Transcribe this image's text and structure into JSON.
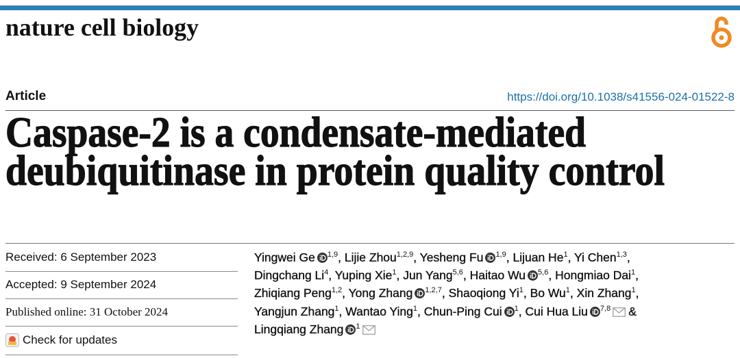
{
  "header": {
    "journal": "nature cell biology",
    "article_type": "Article",
    "doi": "https://doi.org/10.1038/s41556-024-01522-8"
  },
  "title": [
    "Caspase-2 is a condensate-mediated",
    "deubiquitinase in protein quality control"
  ],
  "dates": {
    "received": "Received: 6 September 2023",
    "accepted": "Accepted: 9 September 2024",
    "published": "Published online: 31 October 2024"
  },
  "check_updates": "Check for updates",
  "authors": [
    {
      "name": "Yingwei Ge",
      "orcid": true,
      "affiliations": "1,9",
      "separator": ","
    },
    {
      "name": "Lijie Zhou",
      "affiliations": "1,2,9",
      "separator": ","
    },
    {
      "name": "Yesheng Fu",
      "orcid": true,
      "affiliations": "1,9",
      "separator": ","
    },
    {
      "name": "Lijuan He",
      "affiliations": "1",
      "separator": ","
    },
    {
      "name": "Yi Chen",
      "affiliations": "1,3",
      "separator": ","
    },
    {
      "name": "Dingchang Li",
      "affiliations": "4",
      "separator": ","
    },
    {
      "name": "Yuping Xie",
      "affiliations": "1",
      "separator": ","
    },
    {
      "name": "Jun Yang",
      "affiliations": "5,6",
      "separator": ","
    },
    {
      "name": "Haitao Wu",
      "orcid": true,
      "affiliations": "5,6",
      "separator": ","
    },
    {
      "name": "Hongmiao Dai",
      "affiliations": "1",
      "separator": ","
    },
    {
      "name": "Zhiqiang Peng",
      "affiliations": "1,2",
      "separator": ","
    },
    {
      "name": "Yong Zhang",
      "orcid": true,
      "affiliations": "1,2,7",
      "separator": ","
    },
    {
      "name": "Shaoqiong Yi",
      "affiliations": "1",
      "separator": ","
    },
    {
      "name": "Bo Wu",
      "affiliations": "1",
      "separator": ","
    },
    {
      "name": "Xin Zhang",
      "affiliations": "1",
      "separator": ","
    },
    {
      "name": "Yangjun Zhang",
      "affiliations": "1",
      "separator": ","
    },
    {
      "name": "Wantao Ying",
      "affiliations": "1",
      "separator": ","
    },
    {
      "name": "Chun-Ping Cui",
      "orcid": true,
      "affiliations": "1",
      "separator": ","
    },
    {
      "name": "Cui Hua Liu",
      "orcid": true,
      "affiliations": "7,8",
      "email": true,
      "separator": "&"
    },
    {
      "name": "Lingqiang Zhang",
      "orcid": true,
      "affiliations": "1",
      "email": true
    }
  ]
}
